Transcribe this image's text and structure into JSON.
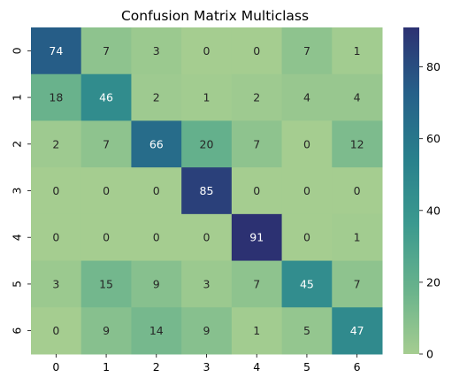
{
  "chart_data": {
    "type": "heatmap",
    "title": "Confusion Matrix Multiclass",
    "xlabel": "",
    "ylabel": "",
    "x_categories": [
      "0",
      "1",
      "2",
      "3",
      "4",
      "5",
      "6"
    ],
    "y_categories": [
      "0",
      "1",
      "2",
      "3",
      "4",
      "5",
      "6"
    ],
    "values": [
      [
        74,
        7,
        3,
        0,
        0,
        7,
        1
      ],
      [
        18,
        46,
        2,
        1,
        2,
        4,
        4
      ],
      [
        2,
        7,
        66,
        20,
        7,
        0,
        12
      ],
      [
        0,
        0,
        0,
        85,
        0,
        0,
        0
      ],
      [
        0,
        0,
        0,
        0,
        91,
        0,
        1
      ],
      [
        3,
        15,
        9,
        3,
        7,
        45,
        7
      ],
      [
        0,
        9,
        14,
        9,
        1,
        5,
        47
      ]
    ],
    "annotations": true,
    "colormap": "crest",
    "colorbar": {
      "range": [
        0,
        91
      ],
      "ticks": [
        0,
        20,
        40,
        60,
        80
      ]
    },
    "colors": {
      "low": "#a5cd90",
      "high": "#2c3172"
    }
  }
}
